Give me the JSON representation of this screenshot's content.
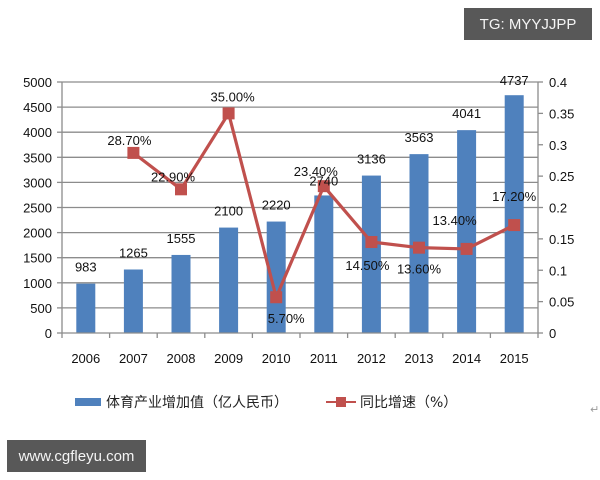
{
  "watermarks": {
    "top_right": "TG: MYYJJPP",
    "bottom_left": "www.cgfleyu.com"
  },
  "legend": {
    "bar_label": "体育产业增加值（亿人民币）",
    "line_label": "同比增速（%）"
  },
  "trailing_mark": "↵",
  "colors": {
    "bar": "#4F81BD",
    "line": "#C0504D",
    "grid": "#8c8c8c",
    "badge_bg": "#585858"
  },
  "chart_data": {
    "type": "bar+line",
    "title": "",
    "categories": [
      "2006",
      "2007",
      "2008",
      "2009",
      "2010",
      "2011",
      "2012",
      "2013",
      "2014",
      "2015"
    ],
    "series": [
      {
        "name": "体育产业增加值（亿人民币）",
        "type": "bar",
        "axis": "left",
        "values": [
          983,
          1265,
          1555,
          2100,
          2220,
          2740,
          3136,
          3563,
          4041,
          4737
        ],
        "labels": [
          "983",
          "1265",
          "1555",
          "2100",
          "2220",
          "2740",
          "3136",
          "3563",
          "4041",
          "4737"
        ]
      },
      {
        "name": "同比增速（%）",
        "type": "line",
        "axis": "right",
        "values": [
          null,
          0.287,
          0.229,
          0.35,
          0.057,
          0.234,
          0.145,
          0.136,
          0.134,
          0.172
        ],
        "labels": [
          null,
          "28.70%",
          "22.90%",
          "35.00%",
          "5.70%",
          "23.40%",
          "14.50%",
          "13.60%",
          "13.40%",
          "17.20%"
        ]
      }
    ],
    "left_axis": {
      "ylim": [
        0,
        5000
      ],
      "ticks": [
        "0",
        "500",
        "1000",
        "1500",
        "2000",
        "2500",
        "3000",
        "3500",
        "4000",
        "4500",
        "5000"
      ]
    },
    "right_axis": {
      "ylim": [
        0,
        0.4
      ],
      "ticks": [
        "0",
        "0.05",
        "0.1",
        "0.15",
        "0.2",
        "0.25",
        "0.3",
        "0.35",
        "0.4"
      ]
    },
    "xlabel": "",
    "ylabel": "",
    "grid": true,
    "legend_position": "bottom"
  }
}
